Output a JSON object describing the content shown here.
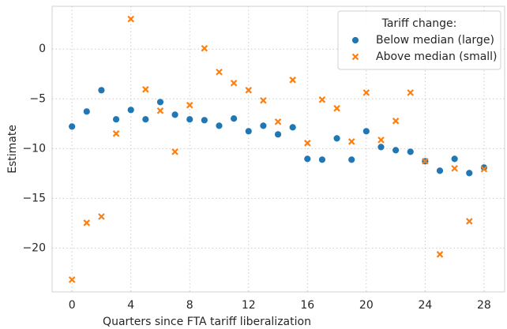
{
  "chart_data": {
    "type": "scatter",
    "x_label": "Quarters since FTA tariff liberalization",
    "y_label": "Estimate",
    "x": [
      0,
      1,
      2,
      3,
      4,
      5,
      6,
      7,
      8,
      9,
      10,
      11,
      12,
      13,
      14,
      15,
      16,
      17,
      18,
      19,
      20,
      21,
      22,
      23,
      24,
      25,
      26,
      27,
      28
    ],
    "series": [
      {
        "name": "Below median (large)",
        "color": "#1f77b4",
        "marker": "o",
        "values": [
          -7.78,
          -6.27,
          -4.13,
          -7.06,
          -6.11,
          -7.06,
          -5.32,
          -6.59,
          -7.06,
          -7.14,
          -7.7,
          -6.98,
          -8.25,
          -7.7,
          -8.57,
          -7.86,
          -11.03,
          -11.11,
          -8.97,
          -11.11,
          -8.25,
          -9.84,
          -10.16,
          -10.32,
          -11.27,
          -12.22,
          -11.03,
          -12.46,
          -11.9
        ]
      },
      {
        "name": "Above median (small)",
        "color": "#ff7f0e",
        "marker": "x",
        "values": [
          -23.17,
          -17.46,
          -16.83,
          -8.49,
          3.02,
          -4.05,
          -6.19,
          -10.32,
          -5.63,
          0.08,
          -2.3,
          -3.41,
          -4.13,
          -5.16,
          -7.3,
          -3.1,
          -9.44,
          -5.08,
          -5.95,
          -9.29,
          -4.37,
          -9.13,
          -7.22,
          -4.37,
          -11.27,
          -20.63,
          -11.98,
          -17.3,
          -12.06
        ]
      }
    ],
    "xlim": [
      -1.35,
      29.4
    ],
    "ylim": [
      -24.4,
      4.3
    ],
    "xticks": [
      0,
      4,
      8,
      12,
      16,
      20,
      24,
      28
    ],
    "yticks": [
      {
        "value": -20,
        "label": "−20"
      },
      {
        "value": -15,
        "label": "−15"
      },
      {
        "value": -10,
        "label": "−10"
      },
      {
        "value": -5,
        "label": "−5"
      },
      0
    ],
    "grid": true,
    "legend": {
      "title": "Tariff change:",
      "position": "upper right"
    }
  }
}
